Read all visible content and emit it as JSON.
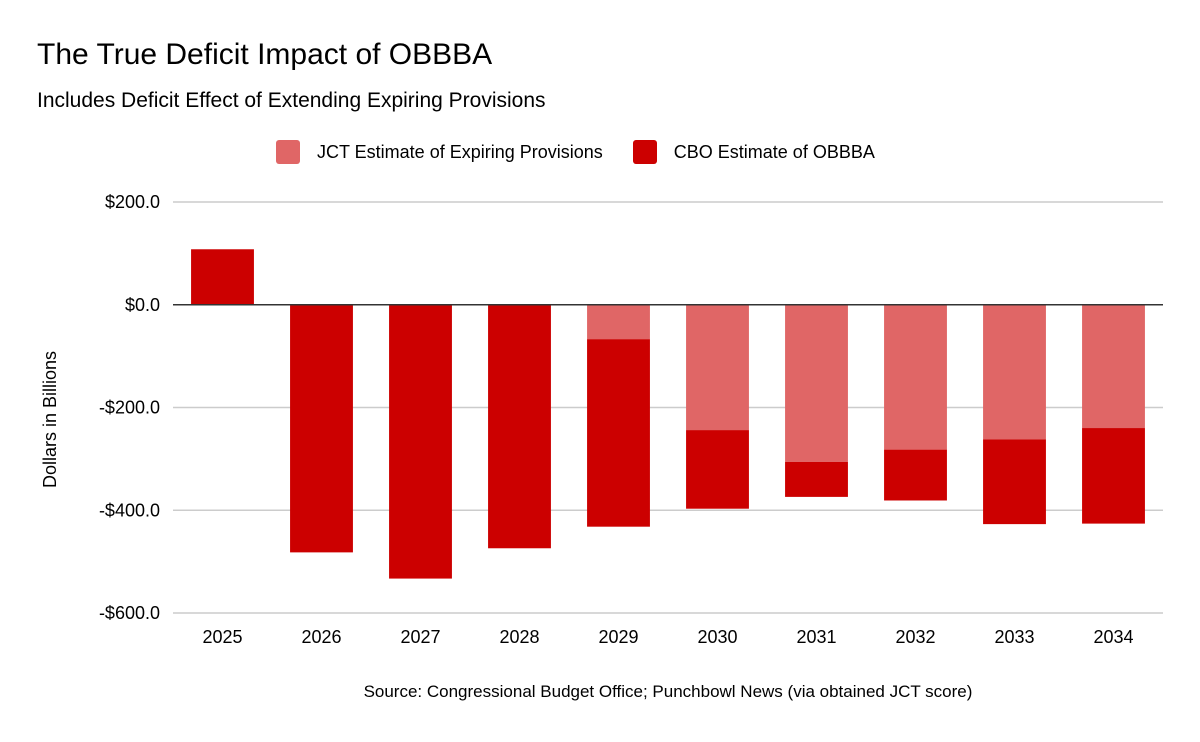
{
  "title": "The True Deficit Impact of OBBBA",
  "subtitle": "Includes Deficit Effect of Extending Expiring Provisions",
  "source": "Source: Congressional Budget Office; Punchbowl News (via obtained JCT score)",
  "colors": {
    "jct": "#e06666",
    "cbo": "#cc0000",
    "grid": "#cccccc",
    "zero": "#333333"
  },
  "chart_data": {
    "type": "bar",
    "stacked": true,
    "title": "The True Deficit Impact of OBBBA",
    "subtitle": "Includes Deficit Effect of Extending Expiring Provisions",
    "xlabel": "",
    "ylabel": "Dollars in Billions",
    "ylim": [
      -600,
      200
    ],
    "yticks": [
      200,
      0,
      -200,
      -400,
      -600
    ],
    "ytick_labels": [
      "$200.0",
      "$0.0",
      "-$200.0",
      "-$400.0",
      "-$600.0"
    ],
    "grid": true,
    "legend_position": "top",
    "categories": [
      "2025",
      "2026",
      "2027",
      "2028",
      "2029",
      "2030",
      "2031",
      "2032",
      "2033",
      "2034"
    ],
    "series": [
      {
        "name": "JCT Estimate of Expiring Provisions",
        "color": "#e06666",
        "values": [
          0,
          0,
          0,
          0,
          -67,
          -244,
          -306,
          -282,
          -262,
          -240
        ]
      },
      {
        "name": "CBO Estimate of OBBBA",
        "color": "#cc0000",
        "values": [
          108,
          -482,
          -533,
          -474,
          -365,
          -153,
          -68,
          -99,
          -165,
          -186
        ]
      }
    ]
  }
}
